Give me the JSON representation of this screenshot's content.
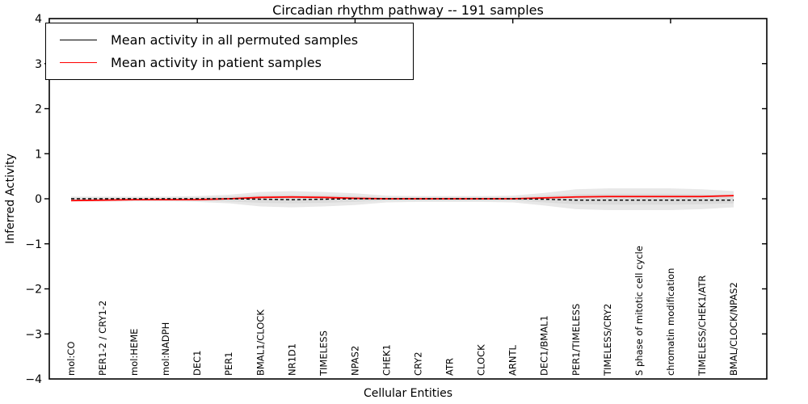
{
  "chart_data": {
    "type": "line",
    "title": "Circadian rhythm pathway -- 191 samples",
    "xlabel": "Cellular Entities",
    "ylabel": "Inferred Activity",
    "ylim": [
      -4,
      4
    ],
    "yticks": [
      4,
      3,
      2,
      1,
      0,
      -1,
      -2,
      -3,
      -4
    ],
    "grid": false,
    "legend_position": "upper left",
    "top_ticks_at_category_index": [
      4,
      9,
      14,
      19
    ],
    "categories": [
      "mol:CO",
      "PER1-2 / CRY1-2",
      "mol:HEME",
      "mol:NADPH",
      "DEC1",
      "PER1",
      "BMAL1/CLOCK",
      "NR1D1",
      "TIMELESS",
      "NPAS2",
      "CHEK1",
      "CRY2",
      "ATR",
      "CLOCK",
      "ARNTL",
      "DEC1/BMAL1",
      "PER1/TIMELESS",
      "TIMELESS/CRY2",
      "S phase of mitotic cell cycle",
      "chromatin modification",
      "TIMELESS/CHEK1/ATR",
      "BMAL/CLOCK/NPAS2"
    ],
    "series": [
      {
        "name": "Mean activity in all permuted samples",
        "color": "#000000",
        "style": "dashed-on-plot",
        "values": [
          0,
          0,
          0,
          0,
          0,
          0,
          -0.01,
          -0.02,
          -0.01,
          0,
          0,
          0,
          0,
          0,
          0,
          -0.01,
          -0.03,
          -0.03,
          -0.03,
          -0.03,
          -0.03,
          -0.03
        ]
      },
      {
        "name": "Mean activity in patient samples",
        "color": "#ff0000",
        "style": "solid",
        "values": [
          -0.04,
          -0.03,
          -0.02,
          -0.02,
          -0.02,
          0,
          0.03,
          0.04,
          0.03,
          0.01,
          0,
          0,
          0,
          0,
          0,
          0.02,
          0.04,
          0.05,
          0.05,
          0.05,
          0.05,
          0.07
        ]
      }
    ],
    "band_outer": {
      "color": "#e8e8e8",
      "upper": [
        0.05,
        0.05,
        0.05,
        0.05,
        0.06,
        0.09,
        0.15,
        0.17,
        0.15,
        0.12,
        0.07,
        0.06,
        0.06,
        0.06,
        0.07,
        0.13,
        0.21,
        0.23,
        0.23,
        0.23,
        0.21,
        0.17
      ],
      "lower": [
        -0.06,
        -0.06,
        -0.06,
        -0.06,
        -0.07,
        -0.1,
        -0.17,
        -0.19,
        -0.17,
        -0.14,
        -0.08,
        -0.07,
        -0.07,
        -0.07,
        -0.08,
        -0.15,
        -0.23,
        -0.25,
        -0.25,
        -0.25,
        -0.23,
        -0.19
      ]
    },
    "band_inner": {
      "color": "#dbdbdb",
      "upper": [
        0.02,
        0.02,
        0.02,
        0.02,
        0.03,
        0.05,
        0.08,
        0.09,
        0.08,
        0.06,
        0.03,
        0.03,
        0.03,
        0.03,
        0.03,
        0.07,
        0.1,
        0.11,
        0.11,
        0.11,
        0.1,
        0.08
      ],
      "lower": [
        -0.03,
        -0.03,
        -0.03,
        -0.03,
        -0.04,
        -0.06,
        -0.09,
        -0.1,
        -0.09,
        -0.07,
        -0.04,
        -0.04,
        -0.04,
        -0.04,
        -0.04,
        -0.08,
        -0.12,
        -0.13,
        -0.13,
        -0.13,
        -0.12,
        -0.1
      ]
    }
  },
  "legend": {
    "entries": [
      {
        "label": "Mean activity in all permuted samples",
        "color": "#000000"
      },
      {
        "label": "Mean activity in patient samples",
        "color": "#ff0000"
      }
    ]
  }
}
